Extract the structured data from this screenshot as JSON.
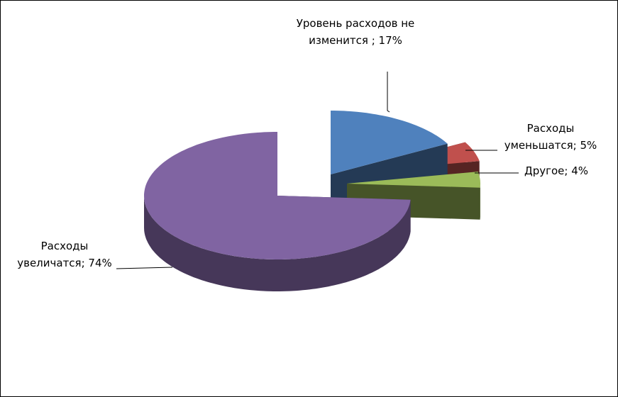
{
  "chart_data": {
    "type": "pie3d",
    "values": [
      17,
      5,
      4,
      74
    ],
    "value_labels": [
      "Уровень расходов не изменится ; 17%",
      "Расходы уменьшатся; 5%",
      "Другое; 4%",
      "Расходы увеличатся; 74%"
    ],
    "colors": [
      "#4f81bd",
      "#c0504d",
      "#9bbb59",
      "#8064a2"
    ]
  }
}
